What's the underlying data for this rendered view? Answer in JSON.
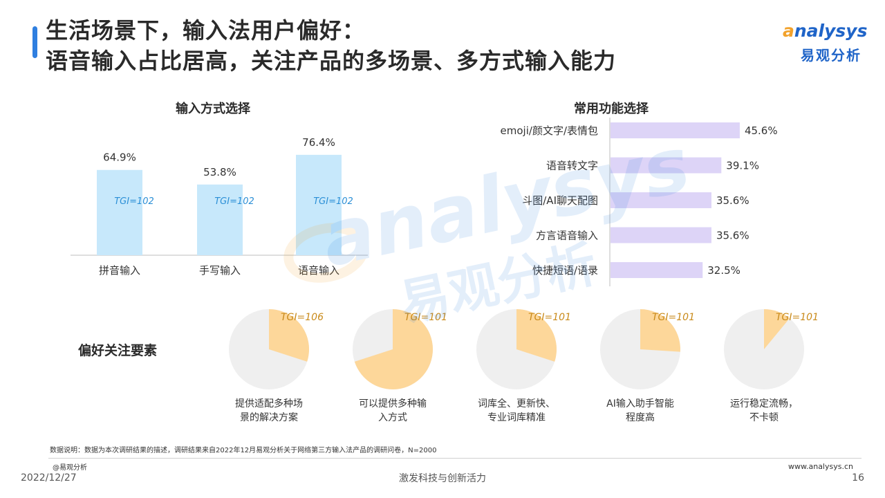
{
  "header": {
    "title_line1": "生活场景下，输入法用户偏好：",
    "title_line2": "语音输入占比居高，关注产品的多场景、多方式输入能力"
  },
  "logo": {
    "en_mark": "a",
    "en_rest": "nalysys",
    "cn": "易观分析"
  },
  "watermark": {
    "en": "analysys",
    "cn": "易观分析"
  },
  "colors": {
    "bar_blue": "#c7e8fb",
    "bar_purple": "#ddd4f7",
    "pie_accent": "#fdd79a",
    "pie_rest": "#efefef",
    "tgi_blue": "#2b8fd6",
    "tgi_orange": "#c98a1a",
    "title_accent": "#2f7fe0"
  },
  "chart_data": [
    {
      "type": "bar",
      "title": "输入方式选择",
      "categories": [
        "拼音输入",
        "手写输入",
        "语音输入"
      ],
      "values": [
        64.9,
        53.8,
        76.4
      ],
      "value_labels": [
        "64.9%",
        "53.8%",
        "76.4%"
      ],
      "tgi_labels": [
        "TGI=102",
        "TGI=102",
        "TGI=102"
      ],
      "ylim": [
        0,
        100
      ]
    },
    {
      "type": "bar",
      "orientation": "horizontal",
      "title": "常用功能选择",
      "categories": [
        "emoji/颜文字/表情包",
        "语音转文字",
        "斗图/AI聊天配图",
        "方言语音输入",
        "快捷短语/语录"
      ],
      "values": [
        45.6,
        39.1,
        35.6,
        35.6,
        32.5
      ],
      "value_labels": [
        "45.6%",
        "39.1%",
        "35.6%",
        "35.6%",
        "32.5%"
      ],
      "xlim": [
        0,
        100
      ]
    },
    {
      "type": "pie",
      "title": "偏好关注要素",
      "categories": [
        "提供适配多种场\n景的解决方案",
        "可以提供多种输\n入方式",
        "词库全、更新快、\n专业词库精准",
        "AI输入助手智能\n程度高",
        "运行稳定流畅，\n不卡顿"
      ],
      "values": [
        30,
        70,
        30,
        26,
        11
      ],
      "tgi_labels": [
        "TGI=106",
        "TGI=101",
        "TGI=101",
        "TGI=101",
        "TGI=101"
      ]
    }
  ],
  "footer": {
    "note": "数据说明：数据为本次调研结果的描述，调研结果来自2022年12月易观分析关于网络第三方输入法产品的调研问卷，N=2000",
    "source": "@易观分析",
    "site": "www.analysys.cn",
    "date": "2022/12/27",
    "slogan": "激发科技与创新活力",
    "page": "16"
  }
}
